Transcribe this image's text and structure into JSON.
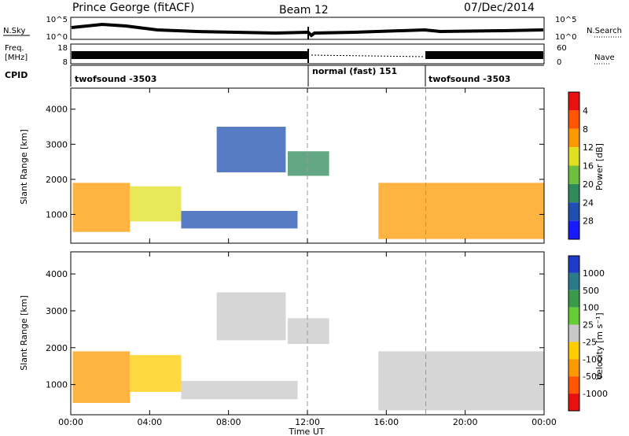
{
  "header": {
    "radar": "Prince George (fitACF)",
    "beam": "Beam 12",
    "date": "07/Dec/2014"
  },
  "sky_panel": {
    "label": "N.Sky",
    "right_label": "N.Search",
    "left_ticks": [
      "10^5",
      "10^0"
    ],
    "right_ticks": [
      "10^5",
      "10^0"
    ]
  },
  "freq_panel": {
    "label_line1": "Freq.",
    "label_line2": "[MHz]",
    "right_label": "Nave",
    "left_ticks": [
      "18",
      "8"
    ],
    "right_ticks": [
      "60",
      "0"
    ]
  },
  "cpid_panel": {
    "label": "CPID",
    "segments": [
      {
        "text": "twofsound -3503",
        "start_hour": 0
      },
      {
        "text": "normal (fast) 151",
        "start_hour": 12
      },
      {
        "text": "twofsound -3503",
        "start_hour": 18
      }
    ]
  },
  "x_axis": {
    "label": "Time UT",
    "ticks": [
      "00:00",
      "04:00",
      "08:00",
      "12:00",
      "16:00",
      "20:00",
      "00:00"
    ],
    "tick_hours": [
      0,
      4,
      8,
      12,
      16,
      20,
      24
    ],
    "range_hours": [
      0,
      24
    ],
    "dashed_marks_hours": [
      12,
      18
    ]
  },
  "chart_data": [
    {
      "type": "heatmap",
      "ylabel": "Slant Range [km]",
      "y_ticks": [
        1000,
        2000,
        3000,
        4000
      ],
      "ylim": [
        180,
        4600
      ],
      "colorbar_label": "Power [dB]",
      "colorbar_ticks": [
        "4",
        "8",
        "12",
        "16",
        "20",
        "24",
        "28"
      ],
      "colorbar_colors": [
        "#1a1aff",
        "#1f4fb0",
        "#2f8a5c",
        "#6fbf3e",
        "#e0e020",
        "#ff9900",
        "#ff5500",
        "#e81010"
      ],
      "regions": [
        {
          "t0": 0.1,
          "t1": 3.0,
          "r0": 500,
          "r1": 1900,
          "level": 5
        },
        {
          "t0": 3.0,
          "t1": 5.6,
          "r0": 800,
          "r1": 1800,
          "level": 4
        },
        {
          "t0": 5.6,
          "t1": 11.5,
          "r0": 600,
          "r1": 1100,
          "level": 1
        },
        {
          "t0": 7.4,
          "t1": 10.9,
          "r0": 2200,
          "r1": 3500,
          "level": 1
        },
        {
          "t0": 11.0,
          "t1": 13.1,
          "r0": 2100,
          "r1": 2800,
          "level": 2
        },
        {
          "t0": 15.6,
          "t1": 24.0,
          "r0": 300,
          "r1": 1900,
          "level": 5
        }
      ]
    },
    {
      "type": "heatmap",
      "ylabel": "Slant Range [km]",
      "y_ticks": [
        1000,
        2000,
        3000,
        4000
      ],
      "ylim": [
        180,
        4600
      ],
      "colorbar_label": "Velocity [m s⁻¹]",
      "colorbar_ticks": [
        "1000",
        "500",
        "100",
        "25",
        "-25",
        "-100",
        "-500",
        "-1000"
      ],
      "colorbar_colors": [
        "#1e3cc8",
        "#2a7a8a",
        "#3a9a4a",
        "#66cc33",
        "#c8c8c8",
        "#ffcc00",
        "#ff9900",
        "#ff5500",
        "#e81010"
      ],
      "regions": [
        {
          "t0": 0.1,
          "t1": 3.0,
          "r0": 500,
          "r1": 1900,
          "level": 6
        },
        {
          "t0": 3.0,
          "t1": 5.6,
          "r0": 800,
          "r1": 1800,
          "level": 5
        },
        {
          "t0": 5.6,
          "t1": 11.5,
          "r0": 600,
          "r1": 1100,
          "level": 4
        },
        {
          "t0": 7.4,
          "t1": 10.9,
          "r0": 2200,
          "r1": 3500,
          "level": 4
        },
        {
          "t0": 11.0,
          "t1": 13.1,
          "r0": 2100,
          "r1": 2800,
          "level": 4
        },
        {
          "t0": 15.6,
          "t1": 24.0,
          "r0": 300,
          "r1": 1900,
          "level": 4
        }
      ]
    }
  ]
}
